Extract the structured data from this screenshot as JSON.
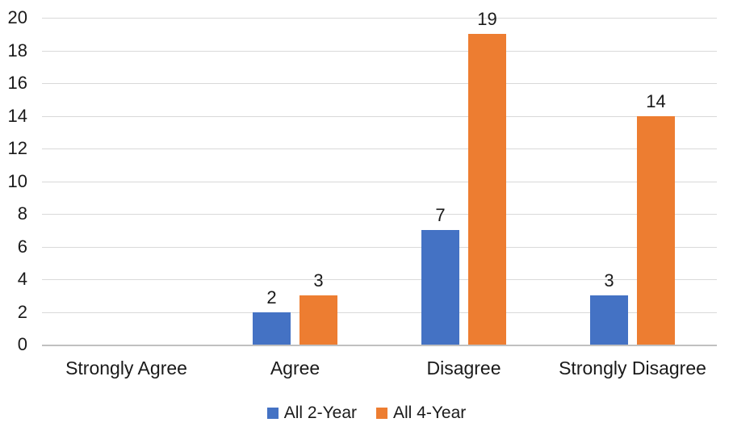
{
  "chart_data": {
    "type": "bar",
    "categories": [
      "Strongly Agree",
      "Agree",
      "Disagree",
      "Strongly Disagree"
    ],
    "series": [
      {
        "name": "All 2-Year",
        "color": "#4472C4",
        "values": [
          0,
          2,
          7,
          3
        ]
      },
      {
        "name": "All 4-Year",
        "color": "#ED7D31",
        "values": [
          0,
          3,
          19,
          14
        ]
      }
    ],
    "title": "",
    "xlabel": "",
    "ylabel": "",
    "ylim": [
      0,
      20
    ],
    "ytick_step": 2,
    "yticks": [
      0,
      2,
      4,
      6,
      8,
      10,
      12,
      14,
      16,
      18,
      20
    ],
    "grid": true,
    "data_labels": true,
    "legend_position": "bottom"
  },
  "colors": {
    "background": "#FFFFFF",
    "gridline": "#D9D9D9",
    "axis_line": "#C0C0C0",
    "text": "#1A1A1A",
    "series_blue": "#4472C4",
    "series_orange": "#ED7D31"
  }
}
